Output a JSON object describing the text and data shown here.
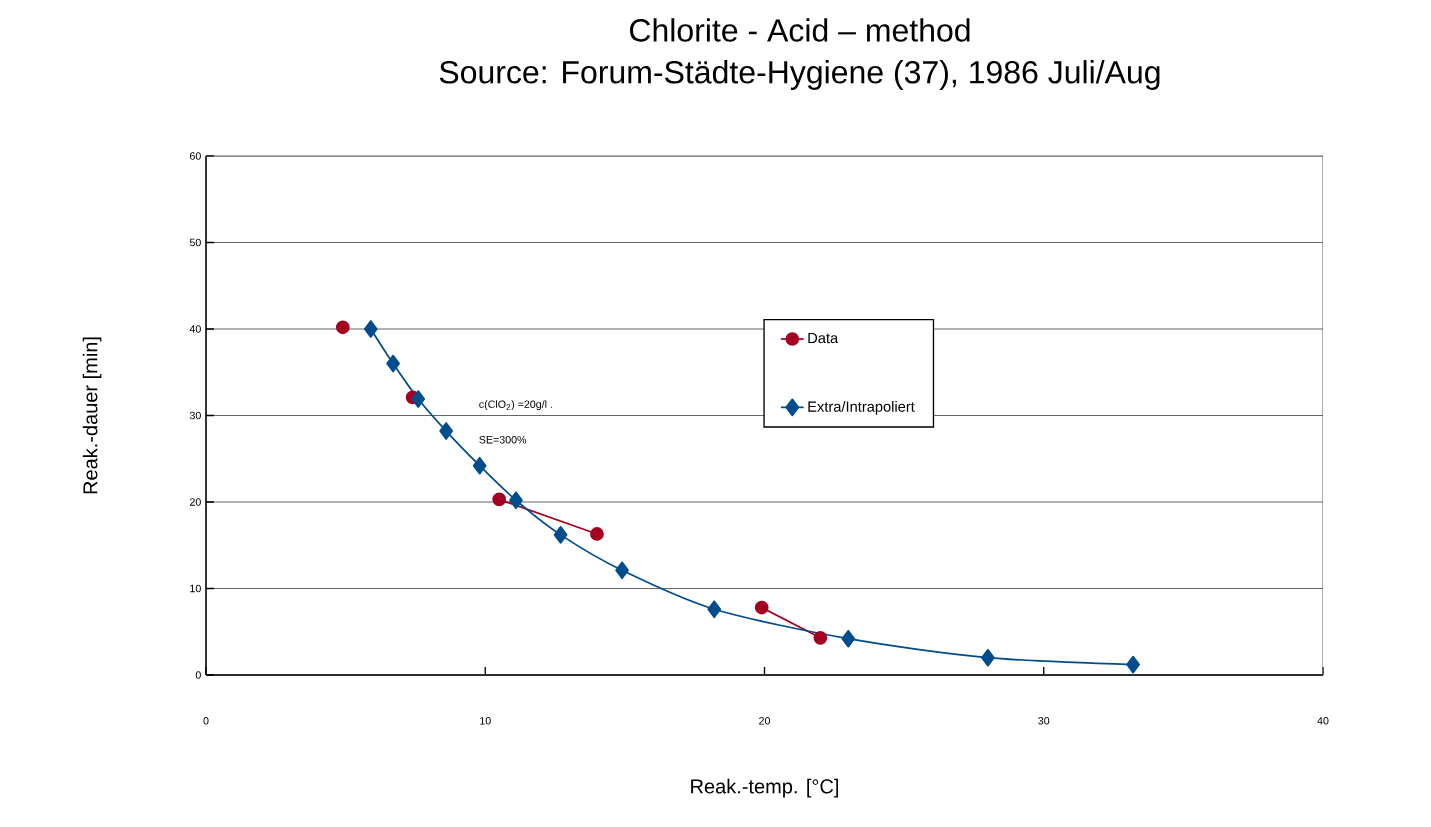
{
  "chart_data": {
    "type": "line",
    "title": "Chlorite - Acid – method",
    "subtitle": "Source: Forum-Städte-Hygiene (37), 1986 Juli/Aug",
    "xlabel": "Reak.-temp. [°C]",
    "ylabel": "Reak.-dauer [min]",
    "xlim": [
      0,
      40
    ],
    "xticks": [
      0,
      10,
      20,
      30,
      40
    ],
    "ylim": [
      0,
      60
    ],
    "yticks": [
      0,
      10,
      20,
      30,
      40,
      50,
      60
    ],
    "grid": "y",
    "legend": "right",
    "annotations": [
      "c(ClO$_{2}$) =20g/l .",
      "SE=300%"
    ],
    "series": [
      {
        "name": "Data",
        "color": "#a50021",
        "marker": "circle",
        "x": [
          4.9,
          6.2,
          7.4,
          9.0,
          10.5,
          14.0,
          17.0,
          19.9,
          22.0
        ],
        "values": [
          40.2,
          null,
          32.1,
          null,
          20.3,
          16.3,
          null,
          7.8,
          4.3
        ]
      },
      {
        "name": "Extra/Intrapoliert",
        "color": "#004c8c",
        "marker": "diamond",
        "x": [
          5.9,
          6.7,
          7.6,
          8.6,
          9.8,
          11.1,
          12.7,
          14.9,
          18.2,
          23.0,
          28.0,
          33.2
        ],
        "values": [
          40.0,
          36.0,
          31.9,
          28.2,
          24.2,
          20.2,
          16.2,
          12.1,
          7.6,
          4.2,
          2.0,
          1.2
        ]
      }
    ]
  }
}
